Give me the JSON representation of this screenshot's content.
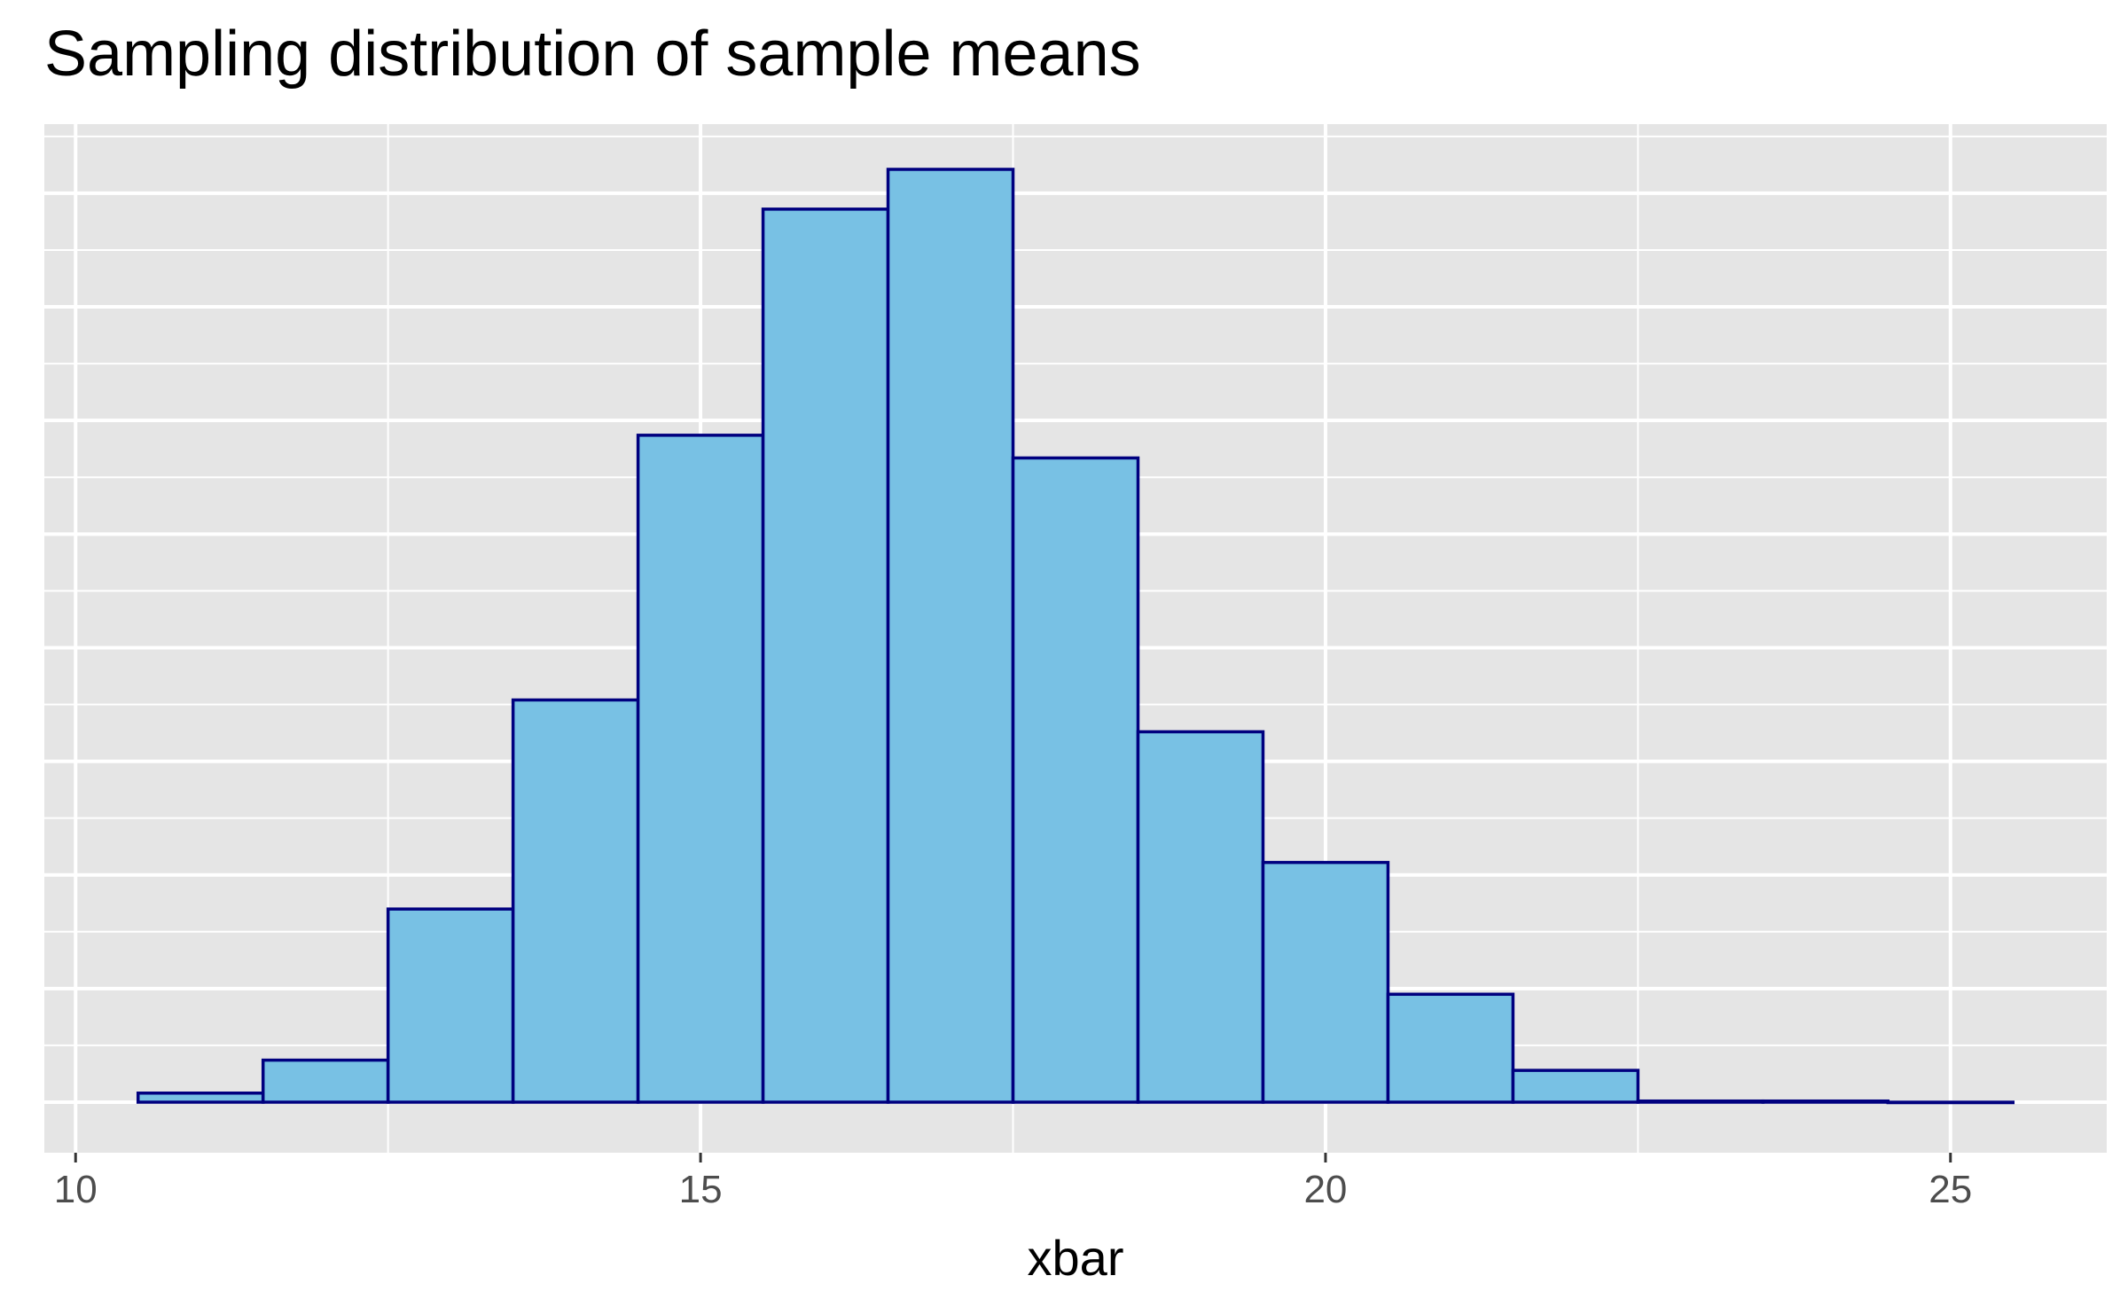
{
  "chart_data": {
    "type": "bar",
    "title": "Sampling distribution of sample means",
    "xlabel": "xbar",
    "ylabel": "",
    "x_ticks": [
      10,
      15,
      20,
      25
    ],
    "xlim": [
      9.75,
      26.25
    ],
    "ylim": [
      0,
      8.42
    ],
    "y_ticks_hidden": true,
    "grid": true,
    "bins": [
      {
        "start": 10.5,
        "end": 11.5,
        "value": 0.08
      },
      {
        "start": 11.5,
        "end": 12.5,
        "value": 0.37
      },
      {
        "start": 12.5,
        "end": 13.5,
        "value": 1.7
      },
      {
        "start": 13.5,
        "end": 14.5,
        "value": 3.54
      },
      {
        "start": 14.5,
        "end": 15.5,
        "value": 5.87
      },
      {
        "start": 15.5,
        "end": 16.5,
        "value": 7.86
      },
      {
        "start": 16.5,
        "end": 17.5,
        "value": 8.21
      },
      {
        "start": 17.5,
        "end": 18.5,
        "value": 5.67
      },
      {
        "start": 18.5,
        "end": 19.5,
        "value": 3.26
      },
      {
        "start": 19.5,
        "end": 20.5,
        "value": 2.11
      },
      {
        "start": 20.5,
        "end": 21.5,
        "value": 0.95
      },
      {
        "start": 21.5,
        "end": 22.5,
        "value": 0.28
      },
      {
        "start": 22.5,
        "end": 23.5,
        "value": 0.01
      },
      {
        "start": 23.5,
        "end": 24.5,
        "value": 0.01
      },
      {
        "start": 24.5,
        "end": 25.5,
        "value": 0.0
      }
    ],
    "colors": {
      "fill": "#78c1e4",
      "stroke": "#00007f",
      "panel_bg": "#e5e5e5",
      "grid": "#ffffff",
      "tick_label": "#4d4d4d"
    }
  }
}
